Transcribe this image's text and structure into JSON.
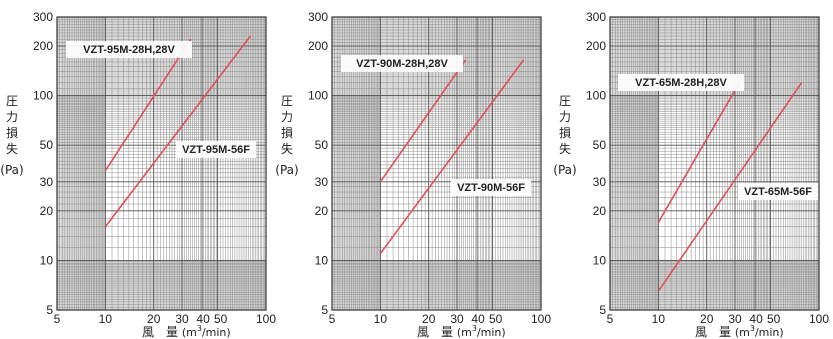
{
  "chart_data": [
    {
      "type": "line",
      "x_scale": "log",
      "y_scale": "log",
      "xlim": [
        5,
        100
      ],
      "ylim": [
        5,
        300
      ],
      "x_ticks": [
        "5",
        "10",
        "20",
        "30",
        "40",
        "50",
        "100"
      ],
      "y_ticks": [
        "5",
        "10",
        "20",
        "30",
        "50",
        "100",
        "200",
        "300"
      ],
      "ylabel": [
        "圧",
        "力",
        "損",
        "失",
        "(Pa)"
      ],
      "xlabel": {
        "main": "風　量",
        "unit_prefix": "(m",
        "unit_sup": "3",
        "unit_suffix": "/min)"
      },
      "grid": true,
      "series": [
        {
          "name": "VZT-95M-28H,28V",
          "x": [
            10,
            34
          ],
          "y": [
            35,
            220
          ],
          "color": "#e0505a"
        },
        {
          "name": "VZT-95M-56F",
          "x": [
            10,
            80
          ],
          "y": [
            16,
            230
          ],
          "color": "#e0505a"
        }
      ]
    },
    {
      "type": "line",
      "x_scale": "log",
      "y_scale": "log",
      "xlim": [
        5,
        100
      ],
      "ylim": [
        5,
        300
      ],
      "x_ticks": [
        "5",
        "10",
        "20",
        "30",
        "40",
        "50",
        "100"
      ],
      "y_ticks": [
        "5",
        "10",
        "20",
        "30",
        "50",
        "100",
        "200",
        "300"
      ],
      "ylabel": [
        "圧",
        "力",
        "損",
        "失",
        "(Pa)"
      ],
      "xlabel": {
        "main": "風　量",
        "unit_prefix": "(m",
        "unit_sup": "3",
        "unit_suffix": "/min)"
      },
      "grid": true,
      "series": [
        {
          "name": "VZT-90M-28H,28V",
          "x": [
            10,
            34
          ],
          "y": [
            30,
            165
          ],
          "color": "#e0505a"
        },
        {
          "name": "VZT-90M-56F",
          "x": [
            10,
            78
          ],
          "y": [
            11,
            165
          ],
          "color": "#e0505a"
        }
      ]
    },
    {
      "type": "line",
      "x_scale": "log",
      "y_scale": "log",
      "xlim": [
        5,
        100
      ],
      "ylim": [
        5,
        300
      ],
      "x_ticks": [
        "5",
        "10",
        "20",
        "30",
        "40",
        "50",
        "100"
      ],
      "y_ticks": [
        "5",
        "10",
        "20",
        "30",
        "50",
        "100",
        "200",
        "300"
      ],
      "ylabel": [
        "圧",
        "力",
        "損",
        "失",
        "(Pa)"
      ],
      "xlabel": {
        "main": "風　量",
        "unit_prefix": "(m",
        "unit_sup": "3",
        "unit_suffix": "/min)"
      },
      "grid": true,
      "series": [
        {
          "name": "VZT-65M-28H,28V",
          "x": [
            10,
            32
          ],
          "y": [
            17,
            120
          ],
          "color": "#e0505a"
        },
        {
          "name": "VZT-65M-56F",
          "x": [
            10,
            78
          ],
          "y": [
            6.5,
            120
          ],
          "color": "#e0505a"
        }
      ]
    }
  ]
}
